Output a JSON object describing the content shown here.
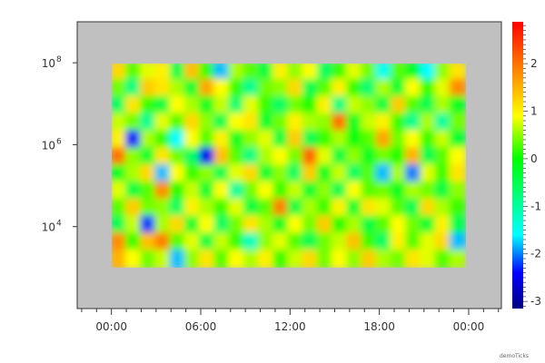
{
  "chart_data": {
    "type": "heatmap",
    "title": "",
    "xlabel": "",
    "ylabel": "",
    "x_axis": {
      "scale": "time",
      "range_hours": [
        -2.3,
        26.2
      ],
      "major_tick_labels": [
        "00:00",
        "06:00",
        "12:00",
        "18:00",
        "00:00"
      ],
      "major_tick_hours": [
        0,
        6,
        12,
        18,
        24
      ],
      "minor_tick_interval_hours": 1
    },
    "y_axis": {
      "scale": "log",
      "range": [
        100,
        1000000000
      ],
      "tick_labels": [
        {
          "base": "10",
          "exp": "8",
          "value": 100000000
        },
        {
          "base": "10",
          "exp": "6",
          "value": 1000000
        },
        {
          "base": "10",
          "exp": "4",
          "value": 10000
        }
      ]
    },
    "data_extent": {
      "x_hours": [
        0,
        23.75
      ],
      "y": [
        1000,
        100000000
      ]
    },
    "background_color": "#c0c0c0",
    "colorbar": {
      "range": [
        -3.15,
        2.88
      ],
      "tick_labels": [
        "2",
        "1",
        "0",
        "-1",
        "-2",
        "-3"
      ],
      "tick_values": [
        2,
        1,
        0,
        -1,
        -2,
        -3
      ],
      "colormap": [
        "#000080",
        "#0000ff",
        "#00ffff",
        "#00ff00",
        "#ffff00",
        "#ff8000",
        "#ff0000"
      ]
    },
    "grid": false,
    "values": [
      [
        1.2,
        0.3,
        0.8,
        1.0,
        -0.5,
        1.4,
        0.2,
        -1.8,
        0.6,
        0.3,
        -0.4,
        1.0,
        0.5,
        0.9,
        -0.6,
        0.2,
        0.8,
        0.4,
        -1.5,
        0.3,
        -0.2,
        -1.6,
        0.5,
        1.1
      ],
      [
        0.4,
        -0.8,
        1.3,
        1.1,
        0.6,
        -0.3,
        1.6,
        0.9,
        0.2,
        -0.9,
        0.4,
        0.5,
        1.2,
        -0.5,
        0.3,
        1.0,
        0.2,
        -0.7,
        0.6,
        -0.3,
        0.9,
        0.2,
        0.8,
        1.8
      ],
      [
        -0.6,
        1.1,
        0.2,
        -0.4,
        0.9,
        0.6,
        -0.2,
        0.7,
        -0.7,
        0.8,
        0.2,
        -0.6,
        0.4,
        0.1,
        1.0,
        -0.8,
        0.7,
        0.5,
        -0.4,
        1.3,
        0.3,
        -0.5,
        0.6,
        -0.2
      ],
      [
        0.7,
        0.4,
        -0.9,
        0.8,
        0.3,
        1.2,
        0.5,
        -0.5,
        0.9,
        1.1,
        -0.3,
        0.4,
        1.0,
        0.6,
        0.5,
        2.0,
        -0.2,
        0.7,
        1.0,
        0.2,
        -0.9,
        0.6,
        -1.0,
        0.4
      ],
      [
        1.0,
        -2.3,
        0.6,
        0.2,
        -1.6,
        0.9,
        0.3,
        1.0,
        -0.2,
        0.5,
        0.8,
        -0.4,
        1.3,
        -0.5,
        0.2,
        0.6,
        -0.1,
        0.3,
        1.6,
        0.4,
        0.9,
        0.2,
        0.7,
        -0.3
      ],
      [
        2.0,
        0.5,
        -0.3,
        1.1,
        0.4,
        -0.6,
        -2.5,
        1.4,
        0.3,
        -0.8,
        0.6,
        0.9,
        0.4,
        2.1,
        0.8,
        -0.4,
        0.5,
        -0.2,
        0.4,
        0.1,
        1.5,
        -0.5,
        0.3,
        0.9
      ],
      [
        -0.2,
        0.6,
        1.2,
        -1.8,
        0.9,
        0.2,
        0.5,
        -0.5,
        0.8,
        1.2,
        -0.3,
        0.5,
        -0.6,
        1.3,
        -0.2,
        0.7,
        -0.6,
        0.3,
        -1.8,
        0.6,
        -2.0,
        0.8,
        0.2,
        1.1
      ],
      [
        0.8,
        -0.4,
        0.3,
        1.8,
        0.1,
        0.7,
        -0.3,
        0.9,
        -1.0,
        0.4,
        0.9,
        0.2,
        0.7,
        -0.3,
        0.5,
        -0.5,
        0.9,
        0.3,
        0.4,
        -0.2,
        0.6,
        0.4,
        -0.4,
        0.5
      ],
      [
        0.3,
        1.3,
        0.4,
        0.5,
        -0.6,
        1.0,
        0.6,
        0.2,
        0.8,
        -0.4,
        0.3,
        1.9,
        -0.4,
        0.6,
        0.2,
        1.0,
        -0.3,
        1.1,
        0.8,
        0.3,
        -0.5,
        1.2,
        0.6,
        0.2
      ],
      [
        -0.5,
        0.7,
        -2.2,
        0.6,
        1.2,
        -0.3,
        0.9,
        -0.6,
        0.4,
        1.1,
        0.6,
        -0.2,
        0.9,
        0.4,
        1.3,
        0.1,
        0.6,
        -0.4,
        0.3,
        0.9,
        0.4,
        -0.3,
        1.0,
        -0.5
      ],
      [
        1.8,
        0.2,
        1.4,
        1.9,
        0.3,
        0.8,
        -0.4,
        0.7,
        0.2,
        -1.2,
        0.5,
        0.8,
        0.3,
        -0.5,
        0.4,
        0.7,
        1.4,
        0.2,
        -0.6,
        1.0,
        0.3,
        0.8,
        1.2,
        -1.8
      ],
      [
        1.5,
        0.9,
        0.4,
        0.7,
        -1.8,
        0.5,
        1.1,
        0.3,
        0.9,
        0.6,
        1.0,
        0.2,
        0.7,
        1.2,
        0.4,
        0.9,
        0.5,
        1.3,
        0.6,
        0.4,
        1.1,
        0.8,
        0.3,
        0.6
      ]
    ]
  },
  "watermark": "demoTicks"
}
